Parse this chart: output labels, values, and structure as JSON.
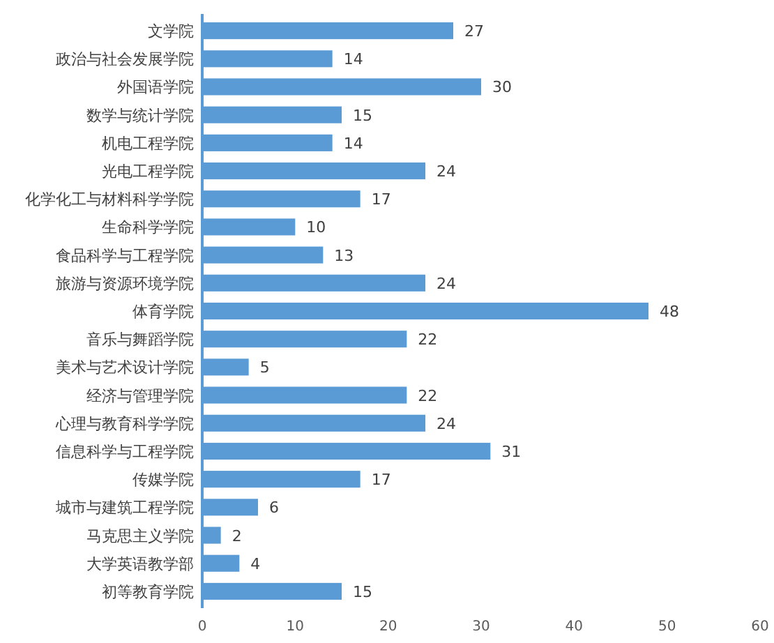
{
  "chart_data": {
    "type": "bar",
    "orientation": "horizontal",
    "categories": [
      "文学院",
      "政治与社会发展学院",
      "外国语学院",
      "数学与统计学院",
      "机电工程学院",
      "光电工程学院",
      "化学化工与材料科学学院",
      "生命科学学院",
      "食品科学与工程学院",
      "旅游与资源环境学院",
      "体育学院",
      "音乐与舞蹈学院",
      "美术与艺术设计学院",
      "经济与管理学院",
      "心理与教育科学学院",
      "信息科学与工程学院",
      "传媒学院",
      "城市与建筑工程学院",
      "马克思主义学院",
      "大学英语教学部",
      "初等教育学院"
    ],
    "values": [
      27,
      14,
      30,
      15,
      14,
      24,
      17,
      10,
      13,
      24,
      48,
      22,
      5,
      22,
      24,
      31,
      17,
      6,
      2,
      4,
      15
    ],
    "color": "#5b9bd5",
    "xlim": [
      0,
      60
    ],
    "xticks": [
      0,
      10,
      20,
      30,
      40,
      50,
      60
    ],
    "data_labels": true
  }
}
